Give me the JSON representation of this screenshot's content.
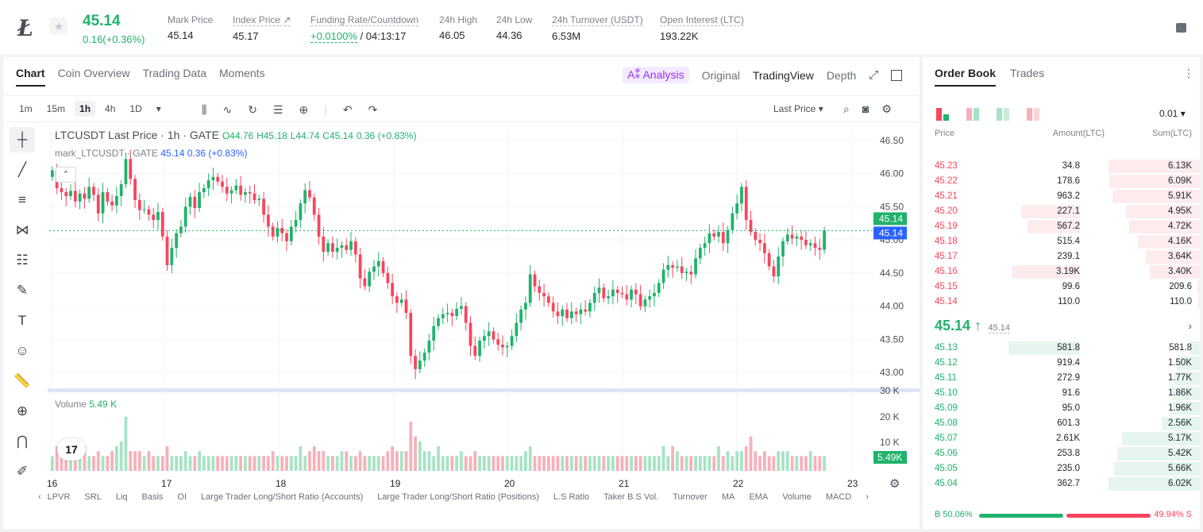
{
  "header": {
    "symbol_glyph": "Ł",
    "price": "45.14",
    "change": "0.16(+0.36%)",
    "stats": [
      {
        "label": "Mark Price",
        "value": "45.14",
        "dashed": false
      },
      {
        "label": "Index Price ↗",
        "value": "45.17",
        "dashed": true
      },
      {
        "label": "Funding Rate/Countdown",
        "value_green": "+0.0100%",
        "value": " / 04:13:17",
        "dashed": true
      },
      {
        "label": "24h High",
        "value": "46.05",
        "dashed": false
      },
      {
        "label": "24h Low",
        "value": "44.36",
        "dashed": false
      },
      {
        "label": "24h Turnover (USDT)",
        "value": "6.53M",
        "dashed": true
      },
      {
        "label": "Open Interest (LTC)",
        "value": "193.22K",
        "dashed": true
      }
    ]
  },
  "chart_tabs": [
    "Chart",
    "Coin Overview",
    "Trading Data",
    "Moments"
  ],
  "view_tabs": {
    "ai": "A⁑ Analysis",
    "original": "Original",
    "tradingview": "TradingView",
    "depth": "Depth"
  },
  "intervals": [
    "1m",
    "15m",
    "1h",
    "4h",
    "1D"
  ],
  "selected_interval": "1h",
  "price_source": "Last Price",
  "legend": {
    "title": "LTCUSDT Last Price · 1h · GATE",
    "o": "O44.76",
    "h": "H45.18",
    "l": "L44.74",
    "c": "C45.14",
    "chg": "0.36 (+0.83%)",
    "mark_name": "mark_LTCUSDT · GATE",
    "mark_val": "45.14  0.36 (+0.83%)"
  },
  "volume": {
    "label": "Volume",
    "value": "5.49 K"
  },
  "tv_logo": "17",
  "indicators": [
    "LPVR",
    "SRL",
    "Liq",
    "Basis",
    "OI",
    "Large Trader Long/Short Ratio (Accounts)",
    "Large Trader Long/Short Ratio (Positions)",
    "L.S Ratio",
    "Taker B.S Vol.",
    "Turnover",
    "MA",
    "EMA",
    "Volume",
    "MACD"
  ],
  "chart_data": {
    "type": "candlestick",
    "y_ticks": [
      "46.50",
      "46.00",
      "45.50",
      "45.00",
      "44.50",
      "44.00",
      "43.50",
      "43.00"
    ],
    "y_range": [
      42.75,
      46.75
    ],
    "vol_ticks": [
      "30 K",
      "20 K",
      "10 K"
    ],
    "x_ticks": [
      "16",
      "17",
      "18",
      "19",
      "20",
      "21",
      "22",
      "23"
    ],
    "last_price_label": "45.14",
    "mark_price_label": "45.14",
    "volume_label": "5.49K",
    "colors": {
      "up": "#20b26c",
      "down": "#f6465d",
      "up_vol": "#a6e3c5",
      "down_vol": "#f7b0ba"
    },
    "closes": [
      46.05,
      45.78,
      45.72,
      45.66,
      45.74,
      45.58,
      45.7,
      45.62,
      45.8,
      45.68,
      45.4,
      45.72,
      45.58,
      45.52,
      45.66,
      45.84,
      46.22,
      45.92,
      45.6,
      45.45,
      45.46,
      45.38,
      45.3,
      45.42,
      45.05,
      44.62,
      44.88,
      45.1,
      45.2,
      45.5,
      45.65,
      45.48,
      45.72,
      45.78,
      45.9,
      45.95,
      45.88,
      45.8,
      45.7,
      45.75,
      45.82,
      45.68,
      45.72,
      45.7,
      45.6,
      45.62,
      45.38,
      45.2,
      45.05,
      45.18,
      45.1,
      44.98,
      45.2,
      45.3,
      45.55,
      45.75,
      45.64,
      45.38,
      45.05,
      44.82,
      44.95,
      44.82,
      44.88,
      44.92,
      44.85,
      44.98,
      44.78,
      44.42,
      44.3,
      44.52,
      44.6,
      44.68,
      44.5,
      44.35,
      44.15,
      44.05,
      44.1,
      43.9,
      43.25,
      43.05,
      43.18,
      43.3,
      43.48,
      43.7,
      43.82,
      43.88,
      43.9,
      43.85,
      43.96,
      44.0,
      43.75,
      43.4,
      43.25,
      43.48,
      43.55,
      43.62,
      43.5,
      43.42,
      43.38,
      43.4,
      43.55,
      43.75,
      43.95,
      44.05,
      44.48,
      44.3,
      44.2,
      44.15,
      44.05,
      43.92,
      43.85,
      43.95,
      43.82,
      43.92,
      43.88,
      43.95,
      43.92,
      44.05,
      44.2,
      44.28,
      44.12,
      44.15,
      44.25,
      44.2,
      44.18,
      44.1,
      44.25,
      44.18,
      44.0,
      44.1,
      44.15,
      44.2,
      44.35,
      44.55,
      44.62,
      44.58,
      44.6,
      44.5,
      44.52,
      44.48,
      44.72,
      44.88,
      44.95,
      45.1,
      45.05,
      45.12,
      44.95,
      45.15,
      45.4,
      45.55,
      45.8,
      45.3,
      45.12,
      45.0,
      44.95,
      44.8,
      44.6,
      44.45,
      44.75,
      44.98,
      45.08,
      45.02,
      45.05,
      45.0,
      44.92,
      44.95,
      44.88,
      44.85,
      45.14
    ],
    "volumes": [
      3,
      5,
      4,
      3,
      3,
      4,
      3,
      5,
      3,
      3,
      4,
      3,
      3,
      4,
      5,
      6,
      11,
      4,
      4,
      4,
      3,
      4,
      3,
      3,
      3,
      5,
      3,
      3,
      3,
      4,
      3,
      3,
      4,
      3,
      3,
      3,
      3,
      3,
      3,
      3,
      3,
      3,
      3,
      3,
      3,
      3,
      3,
      3,
      4,
      3,
      3,
      3,
      3,
      3,
      5,
      3,
      4,
      5,
      4,
      4,
      3,
      3,
      3,
      4,
      4,
      3,
      3,
      4,
      3,
      3,
      3,
      3,
      3,
      4,
      5,
      4,
      4,
      4,
      10,
      7,
      6,
      4,
      4,
      3,
      5,
      3,
      3,
      3,
      3,
      4,
      3,
      3,
      4,
      3,
      3,
      3,
      3,
      3,
      3,
      3,
      3,
      3,
      3,
      4,
      5,
      3,
      3,
      3,
      3,
      3,
      3,
      3,
      3,
      3,
      3,
      3,
      3,
      3,
      3,
      3,
      3,
      3,
      3,
      3,
      3,
      3,
      3,
      3,
      3,
      3,
      3,
      3,
      3,
      5,
      3,
      5,
      4,
      3,
      3,
      3,
      3,
      3,
      3,
      3,
      3,
      5,
      3,
      4,
      3,
      4,
      4,
      5,
      7,
      4,
      3,
      4,
      3,
      3,
      4,
      4,
      4,
      3,
      3,
      3,
      3,
      4,
      3,
      3,
      3,
      4
    ]
  },
  "orderbook": {
    "tabs": [
      "Order Book",
      "Trades"
    ],
    "precision": "0.01 ▾",
    "headers": {
      "price": "Price",
      "amount": "Amount(LTC)",
      "sum": "Sum(LTC)"
    },
    "asks": [
      {
        "price": "45.23",
        "amount": "34.8",
        "sum": "6.13K",
        "a": 0.0,
        "s": 1.0
      },
      {
        "price": "45.22",
        "amount": "178.6",
        "sum": "6.09K",
        "a": 0.0,
        "s": 0.99
      },
      {
        "price": "45.21",
        "amount": "963.2",
        "sum": "5.91K",
        "a": 0.0,
        "s": 0.96
      },
      {
        "price": "45.20",
        "amount": "227.1",
        "sum": "4.95K",
        "a": 0.62,
        "s": 0.81
      },
      {
        "price": "45.19",
        "amount": "567.2",
        "sum": "4.72K",
        "a": 0.55,
        "s": 0.77
      },
      {
        "price": "45.18",
        "amount": "515.4",
        "sum": "4.16K",
        "a": 0.0,
        "s": 0.68
      },
      {
        "price": "45.17",
        "amount": "239.1",
        "sum": "3.64K",
        "a": 0.0,
        "s": 0.59
      },
      {
        "price": "45.16",
        "amount": "3.19K",
        "sum": "3.40K",
        "a": 0.72,
        "s": 0.55
      },
      {
        "price": "45.15",
        "amount": "99.6",
        "sum": "209.6",
        "a": 0.0,
        "s": 0.03
      },
      {
        "price": "45.14",
        "amount": "110.0",
        "sum": "110.0",
        "a": 0.0,
        "s": 0.02
      }
    ],
    "mid": {
      "price": "45.14 ↑",
      "mark": "45.14",
      "chevron": "›"
    },
    "bids": [
      {
        "price": "45.13",
        "amount": "581.8",
        "sum": "581.8",
        "a": 0.75,
        "s": 0.1
      },
      {
        "price": "45.12",
        "amount": "919.4",
        "sum": "1.50K",
        "a": 0.0,
        "s": 0.25
      },
      {
        "price": "45.11",
        "amount": "272.9",
        "sum": "1.77K",
        "a": 0.0,
        "s": 0.29
      },
      {
        "price": "45.10",
        "amount": "91.6",
        "sum": "1.86K",
        "a": 0.0,
        "s": 0.31
      },
      {
        "price": "45.09",
        "amount": "95.0",
        "sum": "1.96K",
        "a": 0.0,
        "s": 0.32
      },
      {
        "price": "45.08",
        "amount": "601.3",
        "sum": "2.56K",
        "a": 0.0,
        "s": 0.42
      },
      {
        "price": "45.07",
        "amount": "2.61K",
        "sum": "5.17K",
        "a": 0.0,
        "s": 0.85
      },
      {
        "price": "45.06",
        "amount": "253.8",
        "sum": "5.42K",
        "a": 0.0,
        "s": 0.9
      },
      {
        "price": "45.05",
        "amount": "235.0",
        "sum": "5.66K",
        "a": 0.0,
        "s": 0.94
      },
      {
        "price": "45.04",
        "amount": "362.7",
        "sum": "6.02K",
        "a": 0.0,
        "s": 1.0
      }
    ],
    "ratio": {
      "buy": "B 50.06%",
      "sell": "49.94% S"
    }
  }
}
